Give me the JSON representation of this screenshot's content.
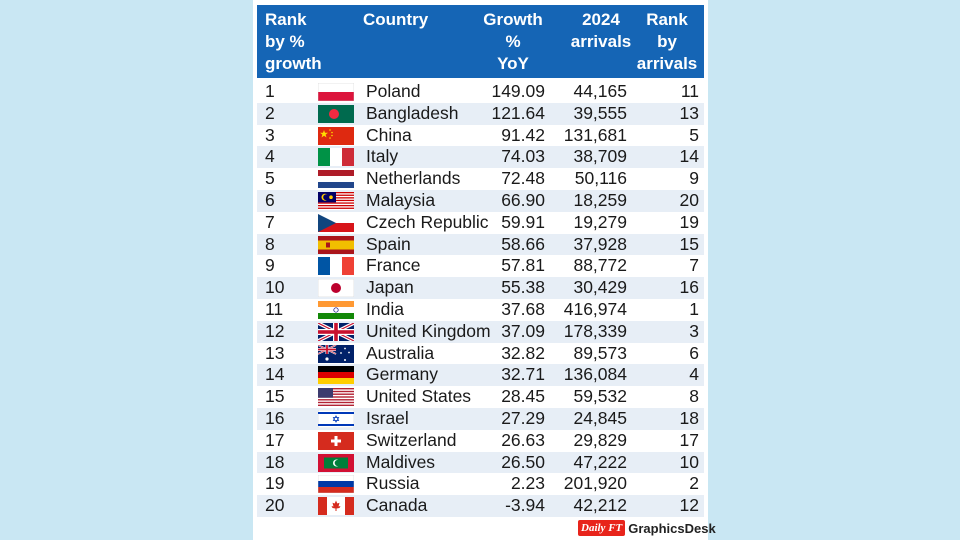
{
  "chart_data": {
    "type": "table",
    "columns": [
      "Rank by % growth",
      "Country",
      "Growth % YoY",
      "2024 arrivals",
      "Rank by arrivals"
    ],
    "header": {
      "rank": [
        "Rank",
        "by %",
        "growth"
      ],
      "country": [
        "Country"
      ],
      "growth": [
        "Growth",
        "%",
        "YoY"
      ],
      "arrivals": [
        "2024",
        "arrivals"
      ],
      "rank_arrivals": [
        "Rank",
        "by",
        "arrivals"
      ]
    },
    "rows": [
      {
        "rank": "1",
        "flag": "poland",
        "country": "Poland",
        "growth": "149.09",
        "arrivals": "44,165",
        "rank_arrivals": "11"
      },
      {
        "rank": "2",
        "flag": "bangladesh",
        "country": "Bangladesh",
        "growth": "121.64",
        "arrivals": "39,555",
        "rank_arrivals": "13"
      },
      {
        "rank": "3",
        "flag": "china",
        "country": "China",
        "growth": "91.42",
        "arrivals": "131,681",
        "rank_arrivals": "5"
      },
      {
        "rank": "4",
        "flag": "italy",
        "country": "Italy",
        "growth": "74.03",
        "arrivals": "38,709",
        "rank_arrivals": "14"
      },
      {
        "rank": "5",
        "flag": "netherlands",
        "country": "Netherlands",
        "growth": "72.48",
        "arrivals": "50,116",
        "rank_arrivals": "9"
      },
      {
        "rank": "6",
        "flag": "malaysia",
        "country": "Malaysia",
        "growth": "66.90",
        "arrivals": "18,259",
        "rank_arrivals": "20"
      },
      {
        "rank": "7",
        "flag": "czech",
        "country": "Czech Republic",
        "growth": "59.91",
        "arrivals": "19,279",
        "rank_arrivals": "19"
      },
      {
        "rank": "8",
        "flag": "spain",
        "country": "Spain",
        "growth": "58.66",
        "arrivals": "37,928",
        "rank_arrivals": "15"
      },
      {
        "rank": "9",
        "flag": "france",
        "country": "France",
        "growth": "57.81",
        "arrivals": "88,772",
        "rank_arrivals": "7"
      },
      {
        "rank": "10",
        "flag": "japan",
        "country": "Japan",
        "growth": "55.38",
        "arrivals": "30,429",
        "rank_arrivals": "16"
      },
      {
        "rank": "11",
        "flag": "india",
        "country": "India",
        "growth": "37.68",
        "arrivals": "416,974",
        "rank_arrivals": "1"
      },
      {
        "rank": "12",
        "flag": "uk",
        "country": "United Kingdom",
        "growth": "37.09",
        "arrivals": "178,339",
        "rank_arrivals": "3"
      },
      {
        "rank": "13",
        "flag": "australia",
        "country": "Australia",
        "growth": "32.82",
        "arrivals": "89,573",
        "rank_arrivals": "6"
      },
      {
        "rank": "14",
        "flag": "germany",
        "country": "Germany",
        "growth": "32.71",
        "arrivals": "136,084",
        "rank_arrivals": "4"
      },
      {
        "rank": "15",
        "flag": "usa",
        "country": "United States",
        "growth": "28.45",
        "arrivals": "59,532",
        "rank_arrivals": "8"
      },
      {
        "rank": "16",
        "flag": "israel",
        "country": "Israel",
        "growth": "27.29",
        "arrivals": "24,845",
        "rank_arrivals": "18"
      },
      {
        "rank": "17",
        "flag": "switzerland",
        "country": "Switzerland",
        "growth": "26.63",
        "arrivals": "29,829",
        "rank_arrivals": "17"
      },
      {
        "rank": "18",
        "flag": "maldives",
        "country": "Maldives",
        "growth": "26.50",
        "arrivals": "47,222",
        "rank_arrivals": "10"
      },
      {
        "rank": "19",
        "flag": "russia",
        "country": "Russia",
        "growth": "2.23",
        "arrivals": "201,920",
        "rank_arrivals": "2"
      },
      {
        "rank": "20",
        "flag": "canada",
        "country": "Canada",
        "growth": "-3.94",
        "arrivals": "42,212",
        "rank_arrivals": "12"
      }
    ]
  },
  "colors": {
    "header_bg": "#1565b5",
    "alt_row": "#e7eef6",
    "background": "#c9e7f3"
  },
  "brand": {
    "logo": "Daily FT",
    "text": "GraphicsDesk"
  }
}
